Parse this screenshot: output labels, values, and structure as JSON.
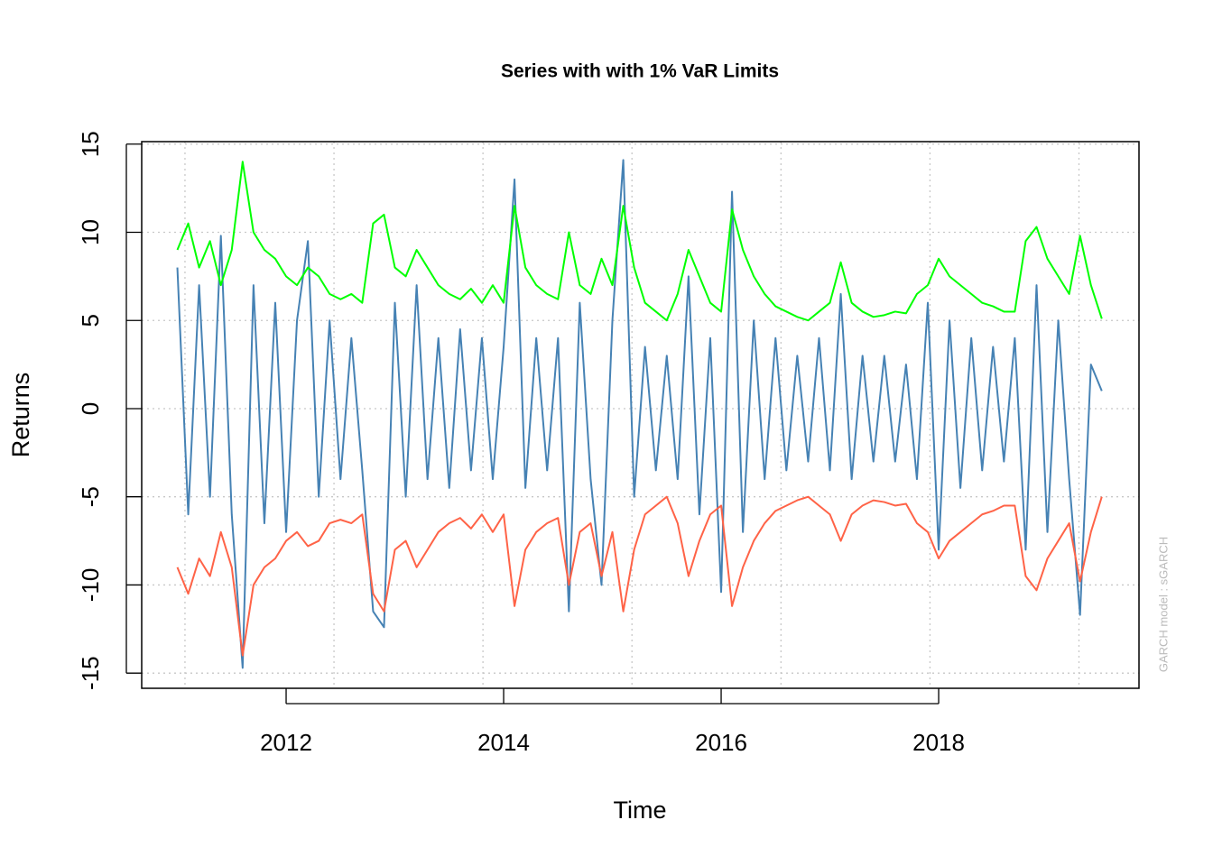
{
  "chart_data": {
    "type": "line",
    "title": "Series with with 1% VaR Limits",
    "xlabel": "Time",
    "ylabel": "Returns",
    "annotation": "GARCH model : sGARCH",
    "x": [
      2011.0,
      2011.1,
      2011.2,
      2011.3,
      2011.4,
      2011.5,
      2011.6,
      2011.7,
      2011.8,
      2011.9,
      2012.0,
      2012.1,
      2012.2,
      2012.3,
      2012.4,
      2012.5,
      2012.6,
      2012.7,
      2012.8,
      2012.9,
      2013.0,
      2013.1,
      2013.2,
      2013.3,
      2013.4,
      2013.5,
      2013.6,
      2013.7,
      2013.8,
      2013.9,
      2014.0,
      2014.1,
      2014.2,
      2014.3,
      2014.4,
      2014.5,
      2014.6,
      2014.7,
      2014.8,
      2014.9,
      2015.0,
      2015.1,
      2015.2,
      2015.3,
      2015.4,
      2015.5,
      2015.6,
      2015.7,
      2015.8,
      2015.9,
      2016.0,
      2016.1,
      2016.2,
      2016.3,
      2016.4,
      2016.5,
      2016.6,
      2016.7,
      2016.8,
      2016.9,
      2017.0,
      2017.1,
      2017.2,
      2017.3,
      2017.4,
      2017.5,
      2017.6,
      2017.7,
      2017.8,
      2017.9,
      2018.0,
      2018.1,
      2018.2,
      2018.3,
      2018.4,
      2018.5,
      2018.6,
      2018.7,
      2018.8,
      2018.9,
      2019.0,
      2019.1,
      2019.2,
      2019.3,
      2019.4,
      2019.5
    ],
    "series": [
      {
        "color": "#4682b4",
        "values": [
          8,
          -6,
          7,
          -5,
          9.8,
          -6,
          -14.7,
          7,
          -6.5,
          6,
          -7,
          5,
          9.5,
          -5,
          5,
          -4,
          4,
          -3.5,
          -11.5,
          -12.4,
          6,
          -5,
          7,
          -4,
          4,
          -4.5,
          4.5,
          -3.5,
          4,
          -4,
          3.5,
          13,
          -4.5,
          4,
          -3.5,
          4,
          -11.5,
          6,
          -4,
          -10,
          5,
          14.1,
          -5,
          3.5,
          -3.5,
          3,
          -4,
          7.5,
          -6,
          4,
          -10.4,
          12.3,
          -7,
          5,
          -4,
          4,
          -3.5,
          3,
          -3,
          4,
          -3.5,
          6.5,
          -4,
          3,
          -3,
          3,
          -3,
          2.5,
          -4,
          6,
          -8,
          5,
          -4.5,
          4,
          -3.5,
          3.5,
          -3,
          4,
          -8,
          7,
          -7,
          5,
          -4,
          -11.7,
          2.5,
          1
        ]
      },
      {
        "color": "#00ff00",
        "values": [
          9,
          10.5,
          8,
          9.5,
          7,
          9,
          14,
          10,
          9,
          8.5,
          7.5,
          7,
          8,
          7.5,
          6.5,
          6.2,
          6.5,
          6,
          10.5,
          11,
          8,
          7.5,
          9,
          8,
          7,
          6.5,
          6.2,
          6.8,
          6,
          7,
          6,
          11.5,
          8,
          7,
          6.5,
          6.2,
          10,
          7,
          6.5,
          8.5,
          7,
          11.5,
          8,
          6,
          5.5,
          5,
          6.5,
          9,
          7.5,
          6,
          5.5,
          11.3,
          9,
          7.5,
          6.5,
          5.8,
          5.5,
          5.2,
          5,
          5.5,
          6,
          8.3,
          6,
          5.5,
          5.2,
          5.3,
          5.5,
          5.4,
          6.5,
          7,
          8.5,
          7.5,
          7,
          6.5,
          6,
          5.8,
          5.5,
          5.5,
          9.5,
          10.3,
          8.5,
          7.5,
          6.5,
          9.8,
          7,
          5.1
        ]
      },
      {
        "color": "#ff6347",
        "values": [
          -9,
          -10.5,
          -8.5,
          -9.5,
          -7,
          -9,
          -14,
          -10,
          -9,
          -8.5,
          -7.5,
          -7,
          -7.8,
          -7.5,
          -6.5,
          -6.3,
          -6.5,
          -6,
          -10.5,
          -11.5,
          -8,
          -7.5,
          -9,
          -8,
          -7,
          -6.5,
          -6.2,
          -6.8,
          -6,
          -7,
          -6,
          -11.2,
          -8,
          -7,
          -6.5,
          -6.2,
          -10,
          -7,
          -6.5,
          -9.5,
          -7,
          -11.5,
          -8,
          -6,
          -5.5,
          -5,
          -6.5,
          -9.5,
          -7.5,
          -6,
          -5.5,
          -11.2,
          -9,
          -7.5,
          -6.5,
          -5.8,
          -5.5,
          -5.2,
          -5,
          -5.5,
          -6,
          -7.5,
          -6,
          -5.5,
          -5.2,
          -5.3,
          -5.5,
          -5.4,
          -6.5,
          -7,
          -8.5,
          -7.5,
          -7,
          -6.5,
          -6,
          -5.8,
          -5.5,
          -5.5,
          -9.5,
          -10.3,
          -8.5,
          -7.5,
          -6.5,
          -9.8,
          -7,
          -5
        ]
      }
    ],
    "xlim": [
      2010.672,
      2019.842
    ],
    "ylim": [
      -15.86,
      15.14
    ],
    "xticks": [
      2012,
      2014,
      2016,
      2018
    ],
    "yticks": [
      -15,
      -10,
      -5,
      0,
      5,
      10,
      15
    ],
    "xgrid": [
      2011.07,
      2012.44,
      2013.81,
      2015.18,
      2016.55,
      2017.92,
      2019.29
    ],
    "grid": true
  }
}
